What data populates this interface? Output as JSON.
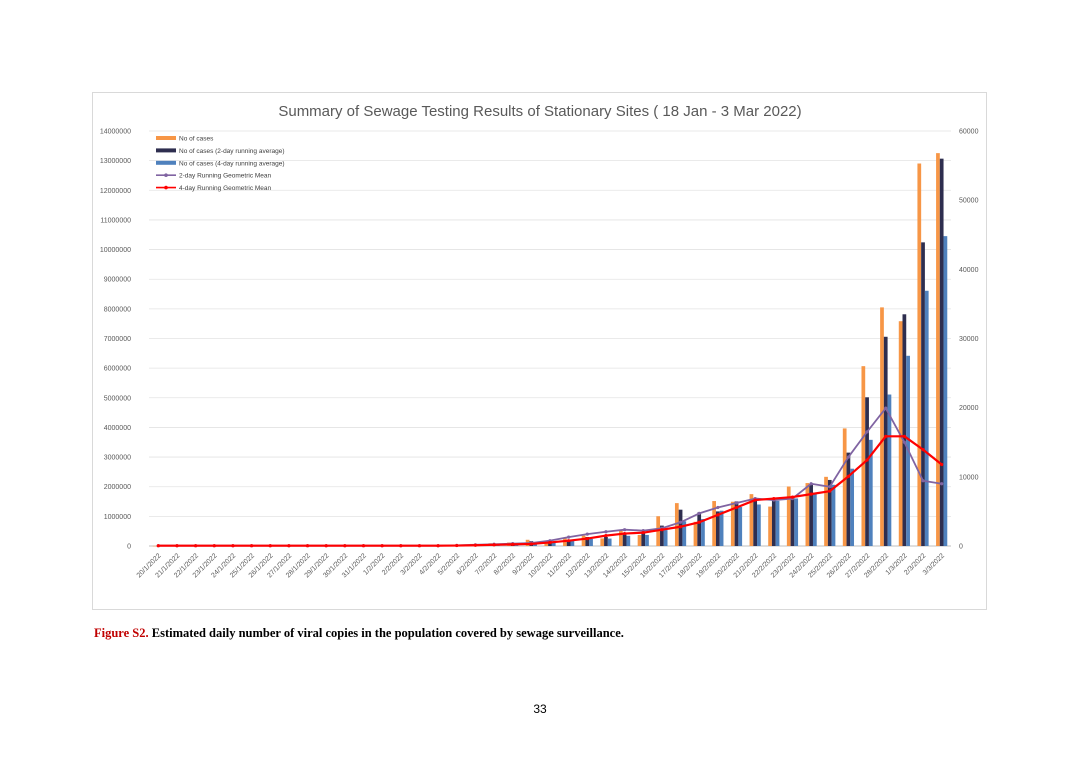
{
  "chart_data": {
    "type": "bar",
    "title": "Summary of Sewage Testing Results of Stationary Sites ( 18 Jan - 3 Mar 2022)",
    "categories": [
      "20/1/2022",
      "21/1/2022",
      "22/1/2022",
      "23/1/2022",
      "24/1/2022",
      "25/1/2022",
      "26/1/2022",
      "27/1/2022",
      "28/1/2022",
      "29/1/2022",
      "30/1/2022",
      "31/1/2022",
      "1/2/2022",
      "2/2/2022",
      "3/2/2022",
      "4/2/2022",
      "5/2/2022",
      "6/2/2022",
      "7/2/2022",
      "8/2/2022",
      "9/2/2022",
      "10/2/2022",
      "11/2/2022",
      "12/2/2022",
      "13/2/2022",
      "14/2/2022",
      "15/2/2022",
      "16/2/2022",
      "17/2/2022",
      "18/2/2022",
      "19/2/2022",
      "20/2/2022",
      "21/2/2022",
      "22/2/2022",
      "23/2/2022",
      "24/2/2022",
      "25/2/2022",
      "26/2/2022",
      "27/2/2022",
      "28/2/2022",
      "1/3/2022",
      "2/3/2022",
      "3/3/2022"
    ],
    "left_axis": {
      "min": 0,
      "max": 14000000,
      "step": 1000000,
      "ticks": [
        "0",
        "1000000",
        "2000000",
        "3000000",
        "4000000",
        "5000000",
        "6000000",
        "7000000",
        "8000000",
        "9000000",
        "10000000",
        "11000000",
        "12000000",
        "13000000",
        "14000000"
      ]
    },
    "right_axis": {
      "min": 0,
      "max": 60000,
      "step": 10000,
      "ticks": [
        "0",
        "10000",
        "20000",
        "30000",
        "40000",
        "50000",
        "60000"
      ]
    },
    "series": [
      {
        "name": "No of cases",
        "type": "bar",
        "axis": "right",
        "color": "#f79646",
        "values": [
          20,
          30,
          25,
          30,
          25,
          30,
          35,
          40,
          45,
          50,
          55,
          60,
          80,
          100,
          120,
          150,
          200,
          300,
          400,
          500,
          900,
          600,
          1100,
          1500,
          1100,
          2200,
          1600,
          4300,
          6200,
          3500,
          6500,
          6400,
          7500,
          5700,
          8600,
          9100,
          10000,
          17000,
          26000,
          34500,
          32500,
          55300,
          56800
        ]
      },
      {
        "name": "No of cases (2-day running average)",
        "type": "bar",
        "axis": "right",
        "color": "#2e2e4f",
        "values": [
          20,
          25,
          28,
          28,
          28,
          28,
          32,
          38,
          42,
          48,
          52,
          58,
          70,
          90,
          110,
          135,
          175,
          250,
          350,
          450,
          700,
          750,
          850,
          1300,
          1300,
          1650,
          1900,
          2950,
          5250,
          4850,
          5000,
          6450,
          6950,
          6600,
          7150,
          8850,
          9550,
          13500,
          21500,
          30250,
          33500,
          43900,
          56000
        ]
      },
      {
        "name": "No of cases (4-day running average)",
        "type": "bar",
        "axis": "right",
        "color": "#4f81bd",
        "values": [
          20,
          22,
          24,
          26,
          27,
          28,
          30,
          33,
          38,
          43,
          48,
          53,
          61,
          74,
          90,
          113,
          143,
          193,
          255,
          350,
          500,
          600,
          730,
          1025,
          1075,
          1475,
          1600,
          2300,
          3575,
          3900,
          5100,
          5650,
          6000,
          6525,
          6875,
          7725,
          8850,
          11175,
          15350,
          21900,
          27500,
          36900,
          44800
        ]
      },
      {
        "name": "2-day Running Geometric Mean",
        "type": "line",
        "axis": "left",
        "color": "#8064a2",
        "values": [
          10000,
          10000,
          10000,
          10000,
          10000,
          10000,
          10000,
          10000,
          10000,
          10000,
          10000,
          10000,
          10000,
          10000,
          10000,
          10000,
          20000,
          40000,
          60000,
          80000,
          100000,
          180000,
          300000,
          400000,
          480000,
          550000,
          520000,
          600000,
          800000,
          1100000,
          1300000,
          1450000,
          1600000,
          1550000,
          1600000,
          2100000,
          2000000,
          3000000,
          3850000,
          4650000,
          3500000,
          2200000,
          2100000
        ]
      },
      {
        "name": "4-day Running Geometric Mean",
        "type": "line",
        "axis": "left",
        "color": "#ff0000",
        "values": [
          10000,
          10000,
          10000,
          10000,
          10000,
          10000,
          10000,
          10000,
          10000,
          10000,
          10000,
          10000,
          10000,
          10000,
          10000,
          10000,
          15000,
          25000,
          40000,
          55000,
          70000,
          120000,
          180000,
          250000,
          350000,
          420000,
          450000,
          550000,
          650000,
          800000,
          1050000,
          1300000,
          1550000,
          1600000,
          1650000,
          1750000,
          1850000,
          2350000,
          2900000,
          3700000,
          3700000,
          3250000,
          2750000
        ]
      }
    ],
    "legend": [
      "No of cases",
      "No of cases (2-day running average)",
      "No of cases (4-day running average)",
      "2-day Running Geometric Mean",
      "4-day Running Geometric Mean"
    ],
    "legend_position": "top-left",
    "grid": true
  },
  "caption": {
    "label": "Figure S2.",
    "text": " Estimated daily number of viral copies in the population covered by sewage surveillance."
  },
  "page_number": "33"
}
